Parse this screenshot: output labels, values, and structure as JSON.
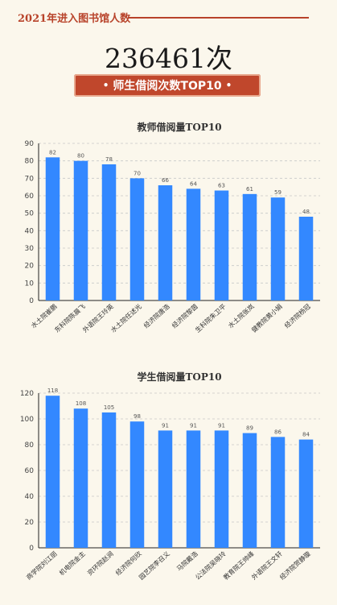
{
  "header": {
    "title": "2021年进入图书馆人数",
    "total_visits": "236461次",
    "banner": "师生借阅次数TOP10",
    "banner_dot": "•"
  },
  "colors": {
    "accent": "#c0472c",
    "bar": "#3388ff",
    "background": "#fbf7ec"
  },
  "chart_data": [
    {
      "type": "bar",
      "title": "教师借阅量TOP10",
      "categories": [
        "水土院崔鹏",
        "东科院陈晨飞",
        "外语院王玲英",
        "水土院任述光",
        "经济院唐浩",
        "经济院黎茵",
        "生科院朱卫平",
        "水土院张岚",
        "健教院黄小娟",
        "经济院杨冠"
      ],
      "values": [
        82,
        80,
        78,
        70,
        66,
        64,
        63,
        61,
        59,
        48
      ],
      "ylim": [
        0,
        90
      ],
      "yticks": [
        0,
        10,
        20,
        30,
        40,
        50,
        60,
        70,
        80,
        90
      ],
      "grid": true
    },
    {
      "type": "bar",
      "title": "学生借阅量TOP10",
      "categories": [
        "商学院刘江丽",
        "机电院金主",
        "资环院赵涧",
        "经济院何欣",
        "园艺院李召义",
        "马院戴浩",
        "公法院吴晓玲",
        "教育院王帅峰",
        "外语院王文轩",
        "经济院贺静璇"
      ],
      "values": [
        118,
        108,
        105,
        98,
        91,
        91,
        91,
        89,
        86,
        84
      ],
      "ylim": [
        0,
        120
      ],
      "yticks": [
        0,
        20,
        40,
        60,
        80,
        100,
        120
      ],
      "grid": true
    }
  ]
}
